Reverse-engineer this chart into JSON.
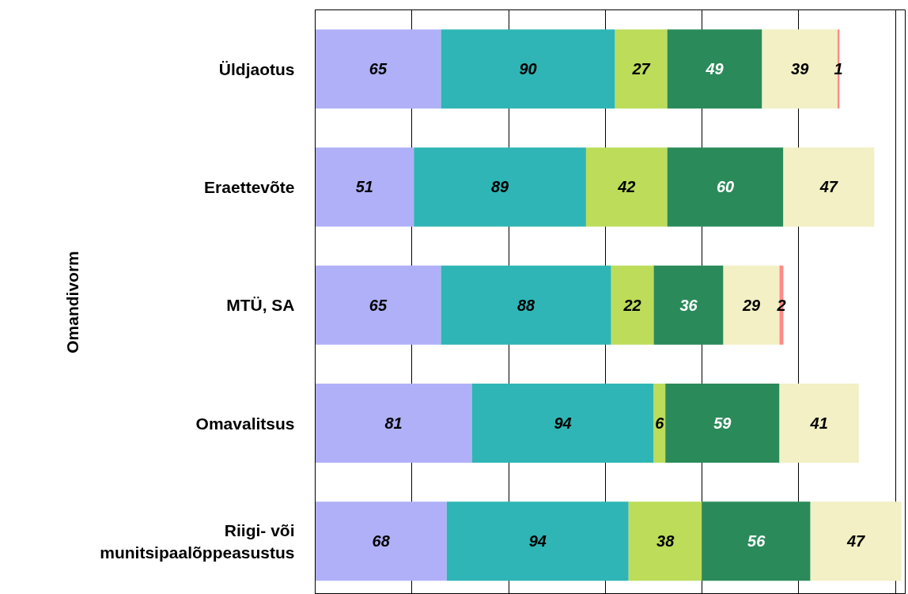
{
  "chart_data": {
    "type": "bar",
    "orientation": "horizontal",
    "stacked": true,
    "data_labels": true,
    "ylabel": "Omandivorm",
    "categories": [
      "Üldjaotus",
      "Eraettevõte",
      "MTÜ, SA",
      "Omavalitsus",
      "Riigi- või munitsipaalõppeasustus"
    ],
    "xlim": [
      0,
      305
    ],
    "xticks": [
      {
        "value": 0,
        "label": null
      },
      {
        "value": 50,
        "label": null
      },
      {
        "value": 100,
        "label": null
      },
      {
        "value": 150,
        "label": null
      },
      {
        "value": 200,
        "label": null
      },
      {
        "value": 250,
        "label": null
      },
      {
        "value": 300,
        "label": null
      }
    ],
    "tick_labels": "y",
    "grid": "x",
    "series": [
      {
        "color": "#b0b0f8",
        "values": [
          65,
          51,
          65,
          81,
          68
        ]
      },
      {
        "color": "#2fb5b5",
        "values": [
          90,
          89,
          88,
          94,
          94
        ]
      },
      {
        "color": "#bcdc5a",
        "values": [
          27,
          42,
          22,
          6,
          38
        ]
      },
      {
        "color": "#2a8a5a",
        "values": [
          49,
          60,
          36,
          59,
          56
        ]
      },
      {
        "color": "#f2f0c4",
        "values": [
          39,
          47,
          29,
          41,
          47
        ]
      },
      {
        "color": "#ff8a8a",
        "values": [
          1,
          null,
          2,
          null,
          null
        ]
      }
    ]
  }
}
